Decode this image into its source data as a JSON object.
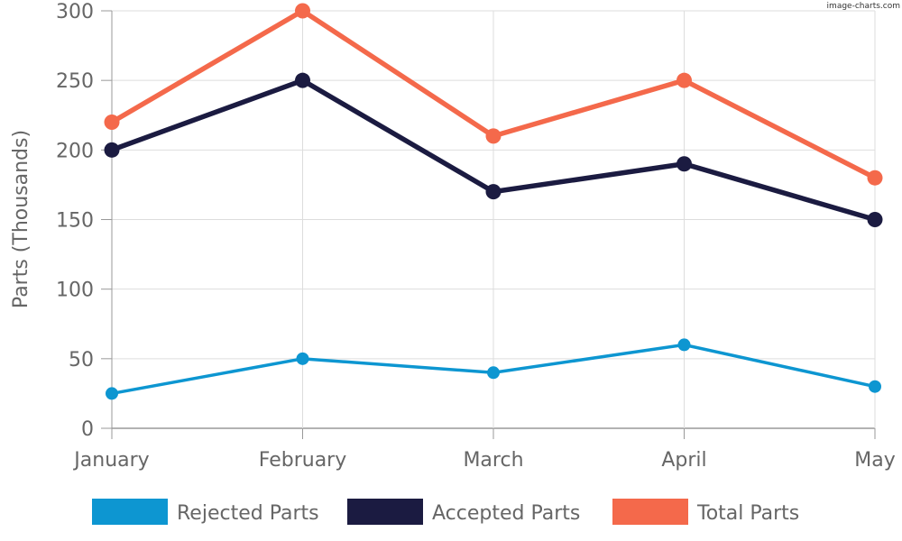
{
  "watermark": "image-charts.com",
  "chart_data": {
    "type": "line",
    "categories": [
      "January",
      "February",
      "March",
      "April",
      "May"
    ],
    "ylabel": "Parts (Thousands)",
    "xlabel": "",
    "title": "",
    "ylim": [
      0,
      300
    ],
    "yticks": [
      0,
      50,
      100,
      150,
      200,
      250,
      300
    ],
    "grid": true,
    "legend_position": "bottom",
    "series": [
      {
        "name": "Rejected Parts",
        "color": "#0d96d1",
        "values": [
          25,
          50,
          40,
          60,
          30
        ]
      },
      {
        "name": "Accepted Parts",
        "color": "#1b1b41",
        "values": [
          200,
          250,
          170,
          190,
          150
        ]
      },
      {
        "name": "Total Parts",
        "color": "#f4694b",
        "values": [
          220,
          300,
          210,
          250,
          180
        ]
      }
    ]
  }
}
